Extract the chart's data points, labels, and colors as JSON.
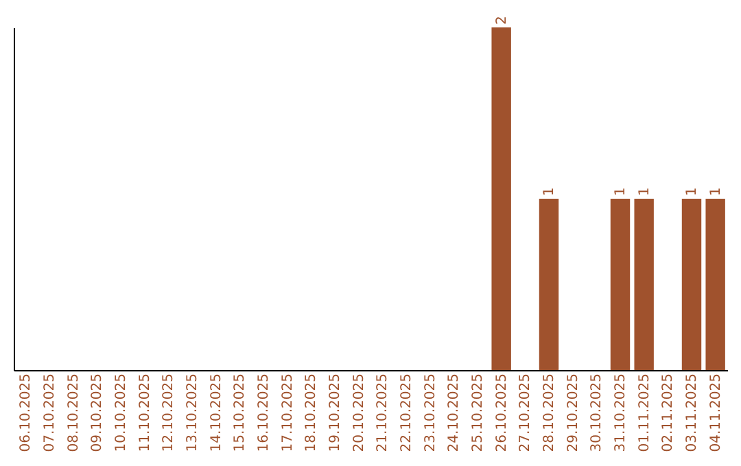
{
  "chart_data": {
    "type": "bar",
    "categories": [
      "06.10.2025",
      "07.10.2025",
      "08.10.2025",
      "09.10.2025",
      "10.10.2025",
      "11.10.2025",
      "12.10.2025",
      "13.10.2025",
      "14.10.2025",
      "15.10.2025",
      "16.10.2025",
      "17.10.2025",
      "18.10.2025",
      "19.10.2025",
      "20.10.2025",
      "21.10.2025",
      "22.10.2025",
      "23.10.2025",
      "24.10.2025",
      "25.10.2025",
      "26.10.2025",
      "27.10.2025",
      "28.10.2025",
      "29.10.2025",
      "30.10.2025",
      "31.10.2025",
      "01.11.2025",
      "02.11.2025",
      "03.11.2025",
      "04.11.2025"
    ],
    "values": [
      null,
      null,
      null,
      null,
      null,
      null,
      null,
      null,
      null,
      null,
      null,
      null,
      null,
      null,
      null,
      null,
      null,
      null,
      null,
      null,
      2,
      null,
      1,
      null,
      null,
      1,
      1,
      null,
      1,
      1
    ],
    "data_labels": true,
    "color": "#a0522d",
    "grid": false,
    "tick_labels": "x"
  }
}
